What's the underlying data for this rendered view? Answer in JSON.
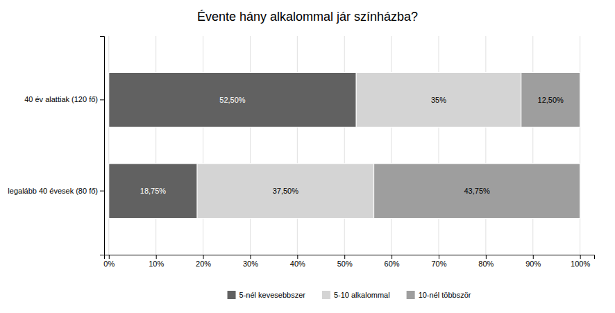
{
  "chart_data": {
    "type": "bar",
    "orientation": "horizontal",
    "stacked": true,
    "title": "Évente hány alkalommal jár színházba?",
    "categories": [
      "40 év alattiak (120 fő)",
      "legalább 40 évesek (80 fő)"
    ],
    "series": [
      {
        "name": "5-nél kevesebbszer",
        "color": "#616161",
        "values": [
          52.5,
          18.75
        ],
        "value_labels": [
          "52,50%",
          "18,75%"
        ]
      },
      {
        "name": "5-10 alkalommal",
        "color": "#d4d4d4",
        "values": [
          35.0,
          37.5
        ],
        "value_labels": [
          "35%",
          "37,50%"
        ]
      },
      {
        "name": "10-nél többször",
        "color": "#9e9e9e",
        "values": [
          12.5,
          43.75
        ],
        "value_labels": [
          "12,50%",
          "43,75%"
        ]
      }
    ],
    "data_labels": true,
    "xlim": [
      -1,
      103
    ],
    "xticks": [
      {
        "value": 0,
        "label": "0%"
      },
      {
        "value": 10,
        "label": "10%"
      },
      {
        "value": 20,
        "label": "20%"
      },
      {
        "value": 30,
        "label": "30%"
      },
      {
        "value": 40,
        "label": "40%"
      },
      {
        "value": 50,
        "label": "50%"
      },
      {
        "value": 60,
        "label": "60%"
      },
      {
        "value": 70,
        "label": "70%"
      },
      {
        "value": 80,
        "label": "80%"
      },
      {
        "value": 90,
        "label": "90%"
      },
      {
        "value": 100,
        "label": "100%"
      }
    ],
    "grid": true,
    "legend": "bottom"
  }
}
